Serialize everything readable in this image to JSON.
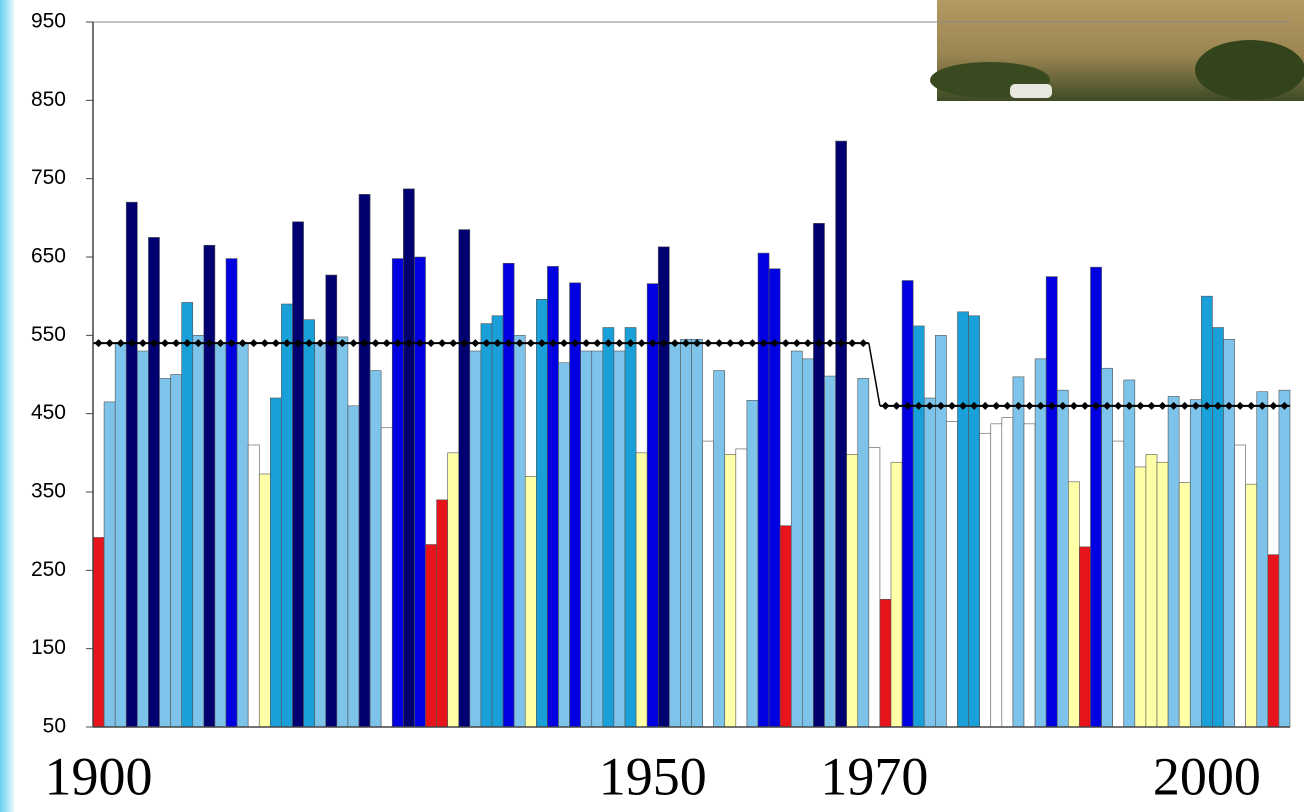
{
  "chart_data": {
    "type": "bar",
    "x": [
      1900,
      1901,
      1902,
      1903,
      1904,
      1905,
      1906,
      1907,
      1908,
      1909,
      1910,
      1911,
      1912,
      1913,
      1914,
      1915,
      1916,
      1917,
      1918,
      1919,
      1920,
      1921,
      1922,
      1923,
      1924,
      1925,
      1926,
      1927,
      1928,
      1929,
      1930,
      1931,
      1932,
      1933,
      1934,
      1935,
      1936,
      1937,
      1938,
      1939,
      1940,
      1941,
      1942,
      1943,
      1944,
      1945,
      1946,
      1947,
      1948,
      1949,
      1950,
      1951,
      1952,
      1953,
      1954,
      1955,
      1956,
      1957,
      1958,
      1959,
      1960,
      1961,
      1962,
      1963,
      1964,
      1965,
      1966,
      1967,
      1968,
      1969,
      1970,
      1971,
      1972,
      1973,
      1974,
      1975,
      1976,
      1977,
      1978,
      1979,
      1980,
      1981,
      1982,
      1983,
      1984,
      1985,
      1986,
      1987,
      1988,
      1989,
      1990,
      1991,
      1992,
      1993,
      1994,
      1995,
      1996,
      1997,
      1998,
      1999,
      2000,
      2001,
      2002,
      2003,
      2004,
      2005,
      2006,
      2007
    ],
    "values": [
      292,
      465,
      540,
      720,
      530,
      675,
      495,
      500,
      592,
      550,
      665,
      540,
      648,
      540,
      410,
      373,
      470,
      590,
      695,
      570,
      540,
      627,
      548,
      460,
      730,
      505,
      432,
      648,
      737,
      650,
      283,
      340,
      400,
      685,
      530,
      565,
      575,
      642,
      550,
      370,
      596,
      638,
      515,
      617,
      530,
      530,
      560,
      530,
      560,
      400,
      616,
      663,
      540,
      545,
      545,
      415,
      505,
      398,
      405,
      467,
      655,
      635,
      307,
      530,
      520,
      693,
      498,
      798,
      398,
      495,
      407,
      213,
      388,
      620,
      562,
      470,
      550,
      440,
      580,
      575,
      425,
      437,
      445,
      497,
      437,
      520,
      625,
      480,
      363,
      280,
      637,
      508,
      415,
      493,
      382,
      398,
      388,
      472,
      362,
      468,
      600,
      560,
      545,
      410,
      360,
      478,
      270,
      480
    ],
    "colors": [
      "#e8141c",
      "#7dc3ea",
      "#7dc3ea",
      "#000070",
      "#7dc3ea",
      "#000070",
      "#7dc3ea",
      "#7dc3ea",
      "#1aa0d8",
      "#7dc3ea",
      "#000070",
      "#7dc3ea",
      "#0000e0",
      "#7dc3ea",
      "#ffffff",
      "#ffffa8",
      "#1aa0d8",
      "#1aa0d8",
      "#000070",
      "#1aa0d8",
      "#7dc3ea",
      "#000070",
      "#7dc3ea",
      "#7dc3ea",
      "#000070",
      "#7dc3ea",
      "#ffffff",
      "#0000e0",
      "#000070",
      "#0000e0",
      "#e8141c",
      "#e8141c",
      "#ffffa8",
      "#000070",
      "#7dc3ea",
      "#1aa0d8",
      "#1aa0d8",
      "#0000e0",
      "#7dc3ea",
      "#ffffa8",
      "#1aa0d8",
      "#0000e0",
      "#7dc3ea",
      "#0000e0",
      "#7dc3ea",
      "#7dc3ea",
      "#1aa0d8",
      "#7dc3ea",
      "#1aa0d8",
      "#ffffa8",
      "#0000e0",
      "#000070",
      "#7dc3ea",
      "#7dc3ea",
      "#7dc3ea",
      "#ffffff",
      "#7dc3ea",
      "#ffffa8",
      "#ffffff",
      "#7dc3ea",
      "#0000e0",
      "#0000e0",
      "#e8141c",
      "#7dc3ea",
      "#7dc3ea",
      "#000070",
      "#7dc3ea",
      "#000070",
      "#ffffa8",
      "#7dc3ea",
      "#ffffff",
      "#e8141c",
      "#ffffa8",
      "#0000e0",
      "#1aa0d8",
      "#7dc3ea",
      "#7dc3ea",
      "#ffffff",
      "#1aa0d8",
      "#1aa0d8",
      "#ffffff",
      "#ffffff",
      "#ffffff",
      "#7dc3ea",
      "#ffffff",
      "#7dc3ea",
      "#0000e0",
      "#7dc3ea",
      "#ffffa8",
      "#e8141c",
      "#0000e0",
      "#7dc3ea",
      "#ffffff",
      "#7dc3ea",
      "#ffffa8",
      "#ffffa8",
      "#ffffa8",
      "#7dc3ea",
      "#ffffa8",
      "#7dc3ea",
      "#1aa0d8",
      "#1aa0d8",
      "#7dc3ea",
      "#ffffff",
      "#ffffa8",
      "#7dc3ea",
      "#e8141c",
      "#7dc3ea"
    ],
    "mean_lines": [
      {
        "value": 540,
        "from": 1900,
        "to": 1969
      },
      {
        "value": 460,
        "from": 1971,
        "to": 2007
      }
    ],
    "xlim": [
      1899.5,
      2007.5
    ],
    "xticks": [
      1900,
      1950,
      1970,
      2000
    ],
    "ylim": [
      50,
      950
    ],
    "yticks": [
      50,
      150,
      250,
      350,
      450,
      550,
      650,
      750,
      850,
      950
    ]
  }
}
